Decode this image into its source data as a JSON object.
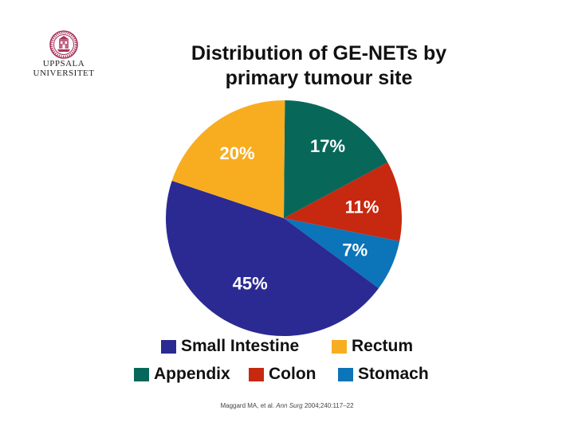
{
  "logo": {
    "name": "uppsala-university-seal",
    "line1": "UPPSALA",
    "line2": "UNIVERSITET",
    "color": "#a8325a"
  },
  "title_lines": [
    "Distribution of GE-NETs by",
    "primary tumour site"
  ],
  "chart_data": {
    "type": "pie",
    "title": "Distribution of GE-NETs by primary tumour site",
    "slices": [
      {
        "name": "Small Intestine",
        "value": 45,
        "label": "45%",
        "color": "#2b2a93"
      },
      {
        "name": "Rectum",
        "value": 20,
        "label": "20%",
        "color": "#f8ad20"
      },
      {
        "name": "Appendix",
        "value": 17,
        "label": "17%",
        "color": "#07685a"
      },
      {
        "name": "Colon",
        "value": 11,
        "label": "11%",
        "color": "#c72810"
      },
      {
        "name": "Stomach",
        "value": 7,
        "label": "7%",
        "color": "#0c74b8"
      }
    ],
    "legend_position": "bottom"
  },
  "reference": {
    "authors": "Maggard MA, et al. ",
    "journal": "Ann Surg",
    "details": " 2004;240:117–22"
  }
}
